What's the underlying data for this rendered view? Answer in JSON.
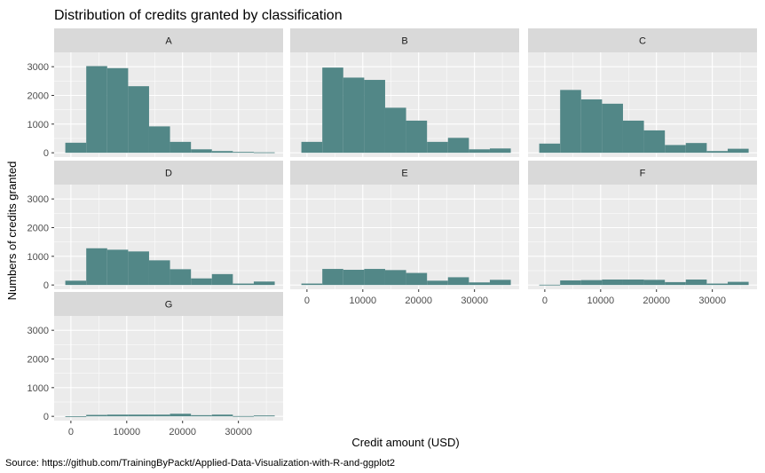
{
  "chart_data": {
    "type": "bar",
    "subtype": "faceted-histogram",
    "title": "Distribution of credits granted by classification",
    "xlabel": "Credit amount (USD)",
    "ylabel": "Numbers of credits granted",
    "caption": "Source: https://github.com/TrainingByPackt/Applied-Data-Visualization-with-R-and-ggplot2",
    "bins": [
      -1000,
      2750,
      6500,
      10250,
      14000,
      17750,
      21500,
      25250,
      29000,
      32750,
      36500
    ],
    "xlim": [
      -3000,
      38000
    ],
    "ylim": [
      -150,
      3500
    ],
    "xticks": [
      0,
      10000,
      20000,
      30000
    ],
    "xtick_labels": [
      "0",
      "10000",
      "20000",
      "30000"
    ],
    "yticks": [
      0,
      1000,
      2000,
      3000
    ],
    "ytick_labels": [
      "0",
      "1000",
      "2000",
      "3000"
    ],
    "grid": true,
    "colors": {
      "fill": "#528787",
      "panel": "#ebebeb",
      "strip": "#d9d9d9",
      "grid": "#ffffff"
    },
    "facets": [
      {
        "name": "A",
        "values": [
          350,
          3020,
          2950,
          2320,
          920,
          380,
          120,
          60,
          30,
          15
        ]
      },
      {
        "name": "B",
        "values": [
          380,
          2970,
          2620,
          2540,
          1570,
          1120,
          380,
          520,
          120,
          150
        ]
      },
      {
        "name": "C",
        "values": [
          320,
          2190,
          1860,
          1710,
          1120,
          780,
          270,
          340,
          60,
          140
        ]
      },
      {
        "name": "D",
        "values": [
          150,
          1280,
          1230,
          1170,
          860,
          550,
          230,
          380,
          50,
          120
        ]
      },
      {
        "name": "E",
        "values": [
          50,
          560,
          530,
          560,
          520,
          420,
          150,
          270,
          90,
          180
        ]
      },
      {
        "name": "F",
        "values": [
          10,
          160,
          170,
          190,
          190,
          180,
          100,
          190,
          50,
          110
        ]
      },
      {
        "name": "G",
        "values": [
          5,
          50,
          60,
          60,
          60,
          90,
          40,
          60,
          10,
          30
        ]
      }
    ]
  }
}
